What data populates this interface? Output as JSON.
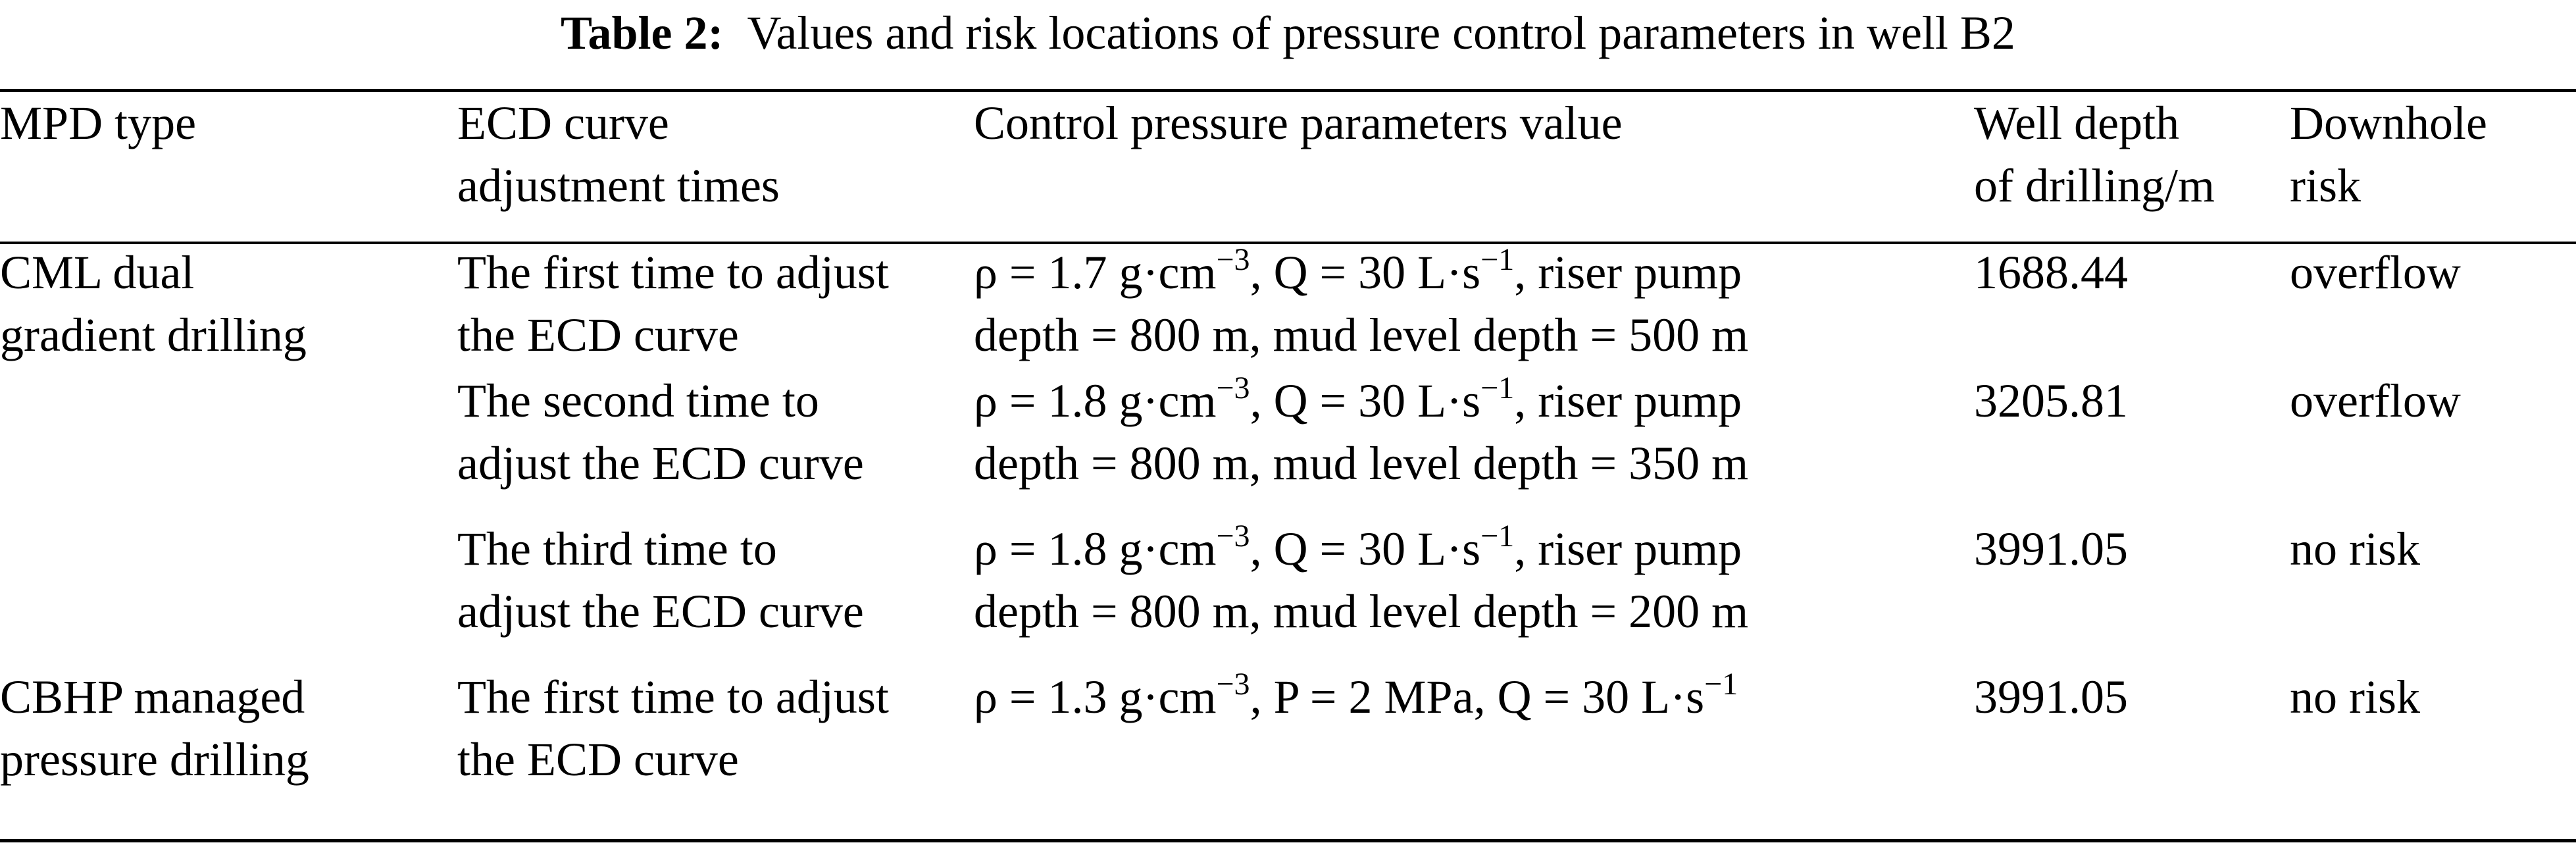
{
  "caption": {
    "label": "Table 2:",
    "text": "Values and risk locations of pressure control parameters in well B2"
  },
  "columns": {
    "mpd_type": "MPD type",
    "ecd_line1": "ECD curve",
    "ecd_line2": "adjustment times",
    "params": "Control pressure parameters value",
    "depth_line1": "Well depth",
    "depth_line2": "of drilling/m",
    "risk_line1": "Downhole",
    "risk_line2": "risk"
  },
  "rows": [
    {
      "mpd_line1": "CML dual",
      "mpd_line2": "gradient drilling",
      "ecd_line1": "The first time to adjust",
      "ecd_line2": "the ECD curve",
      "rho": "ρ = 1.7 g·cm",
      "rho_exp": "−3",
      "q": ", Q = 30 L·s",
      "q_exp": "−1",
      "param_tail": ", riser pump",
      "param_line2": "depth = 800 m, mud level depth = 500 m",
      "depth": "1688.44",
      "risk": "overflow"
    },
    {
      "ecd_line1": "The second time to",
      "ecd_line2": "adjust the ECD curve",
      "rho": "ρ = 1.8 g·cm",
      "rho_exp": "−3",
      "q": ", Q = 30 L·s",
      "q_exp": "−1",
      "param_tail": ", riser pump",
      "param_line2": "depth = 800 m, mud level depth = 350 m",
      "depth": "3205.81",
      "risk": "overflow"
    },
    {
      "ecd_line1": "The third time to",
      "ecd_line2": "adjust the ECD curve",
      "rho": "ρ = 1.8 g·cm",
      "rho_exp": "−3",
      "q": ", Q = 30 L·s",
      "q_exp": "−1",
      "param_tail": ", riser pump",
      "param_line2": "depth = 800 m, mud level depth = 200 m",
      "depth": "3991.05",
      "risk": "no risk"
    },
    {
      "mpd_line1": "CBHP managed",
      "mpd_line2": "pressure drilling",
      "ecd_line1": "The first time to adjust",
      "ecd_line2": "the ECD curve",
      "rho": "ρ = 1.3 g·cm",
      "rho_exp": "−3",
      "p": ", P = 2 MPa",
      "q": ", Q = 30 L·s",
      "q_exp": "−1",
      "depth": "3991.05",
      "risk": "no risk"
    }
  ]
}
